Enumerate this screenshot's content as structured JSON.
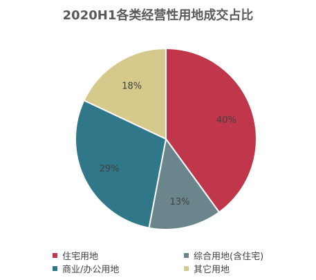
{
  "chart_data": {
    "type": "pie",
    "title": "2020H1各类经营性用地成交占比",
    "categories": [
      "住宅用地",
      "综合用地(含住宅)",
      "商业/办公用地",
      "其它用地"
    ],
    "values": [
      40,
      13,
      29,
      18
    ],
    "labels": [
      "40%",
      "13%",
      "29%",
      "18%"
    ],
    "colors": [
      "#c0364b",
      "#6a868c",
      "#31778a",
      "#d5c98b"
    ],
    "legend_position": "bottom"
  }
}
